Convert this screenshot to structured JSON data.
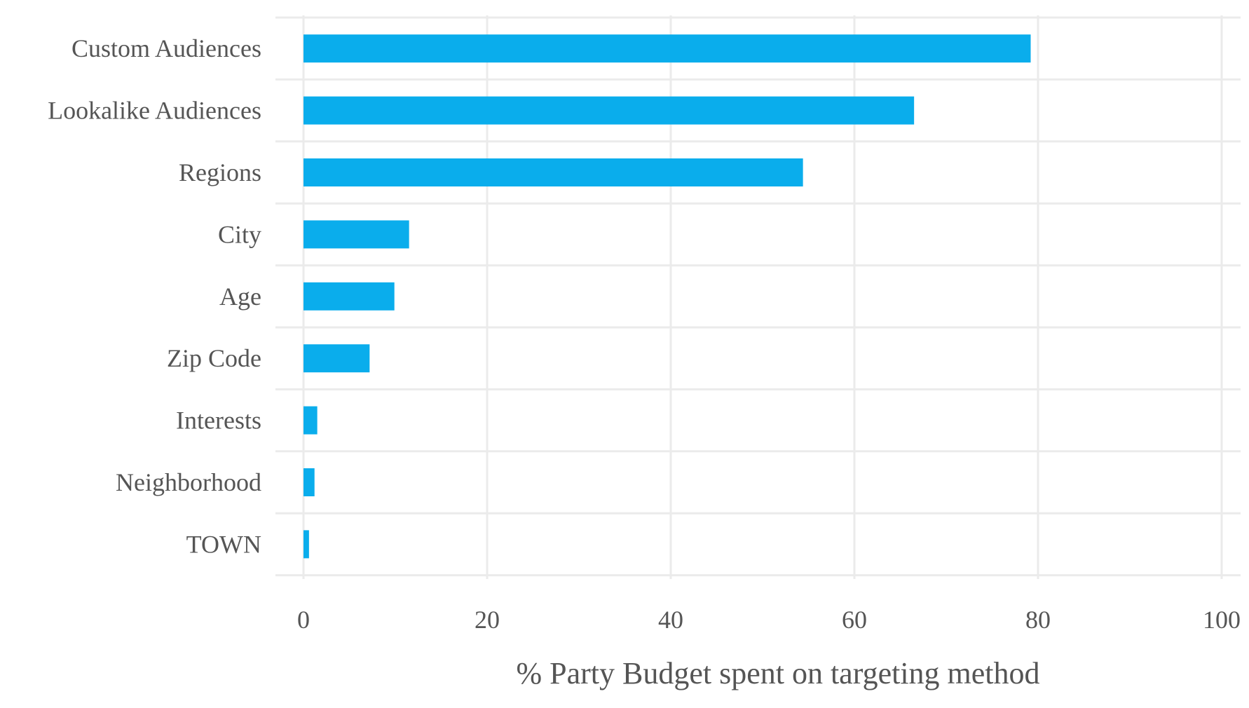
{
  "chart_data": {
    "type": "bar",
    "orientation": "horizontal",
    "categories": [
      "Custom Audiences",
      "Lookalike Audiences",
      "Regions",
      "City",
      "Age",
      "Zip Code",
      "Interests",
      "Neighborhood",
      "TOWN"
    ],
    "values": [
      79.2,
      66.5,
      54.4,
      11.5,
      9.9,
      7.2,
      1.5,
      1.2,
      0.6
    ],
    "xlabel": "% Party Budget spent on targeting method",
    "ylabel": "",
    "xlim": [
      0,
      100
    ],
    "xticks": [
      "0",
      "20",
      "40",
      "60",
      "80",
      "100"
    ],
    "grid": true,
    "bar_color": "#0aadec",
    "grid_color": "#ebebeb",
    "text_color": "#555555"
  }
}
